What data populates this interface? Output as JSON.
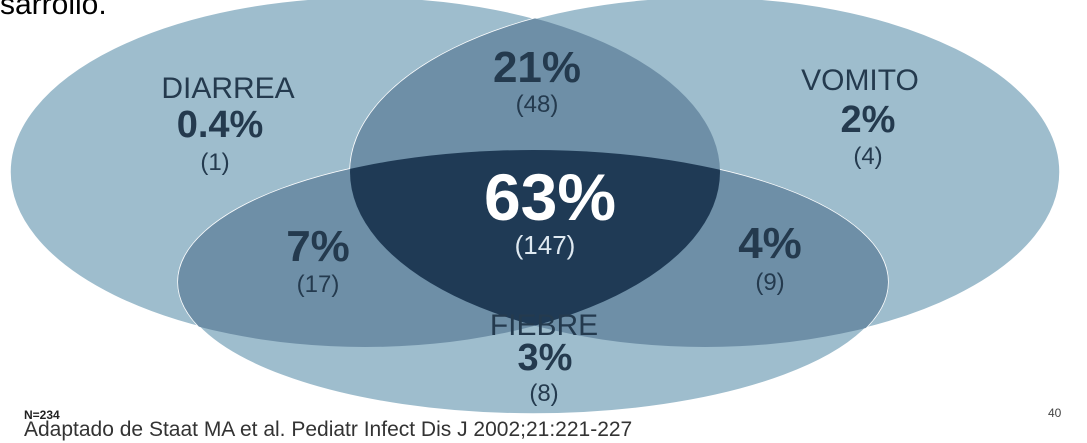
{
  "top_text": "sarrollo.",
  "venn": {
    "sets": [
      {
        "name": "DIARREA",
        "percent": "0.4%",
        "count": "(1)"
      },
      {
        "name": "VOMITO",
        "percent": "2%",
        "count": "(4)"
      },
      {
        "name": "FIEBRE",
        "percent": "3%",
        "count": "(8)"
      }
    ],
    "overlaps": {
      "diarrea_vomito": {
        "percent": "21%",
        "count": "(48)"
      },
      "diarrea_fiebre": {
        "percent": "7%",
        "count": "(17)"
      },
      "vomito_fiebre": {
        "percent": "4%",
        "count": "(9)"
      },
      "all": {
        "percent": "63%",
        "count": "(147)"
      }
    },
    "colors": {
      "single": "#9ebdcd",
      "double": "#6e8fa7",
      "triple": "#1f3a55"
    }
  },
  "footer": {
    "n": "N=234",
    "source": "Adaptado de Staat MA et al. Pediatr Infect Dis J 2002;21:221-227",
    "page": "40"
  }
}
